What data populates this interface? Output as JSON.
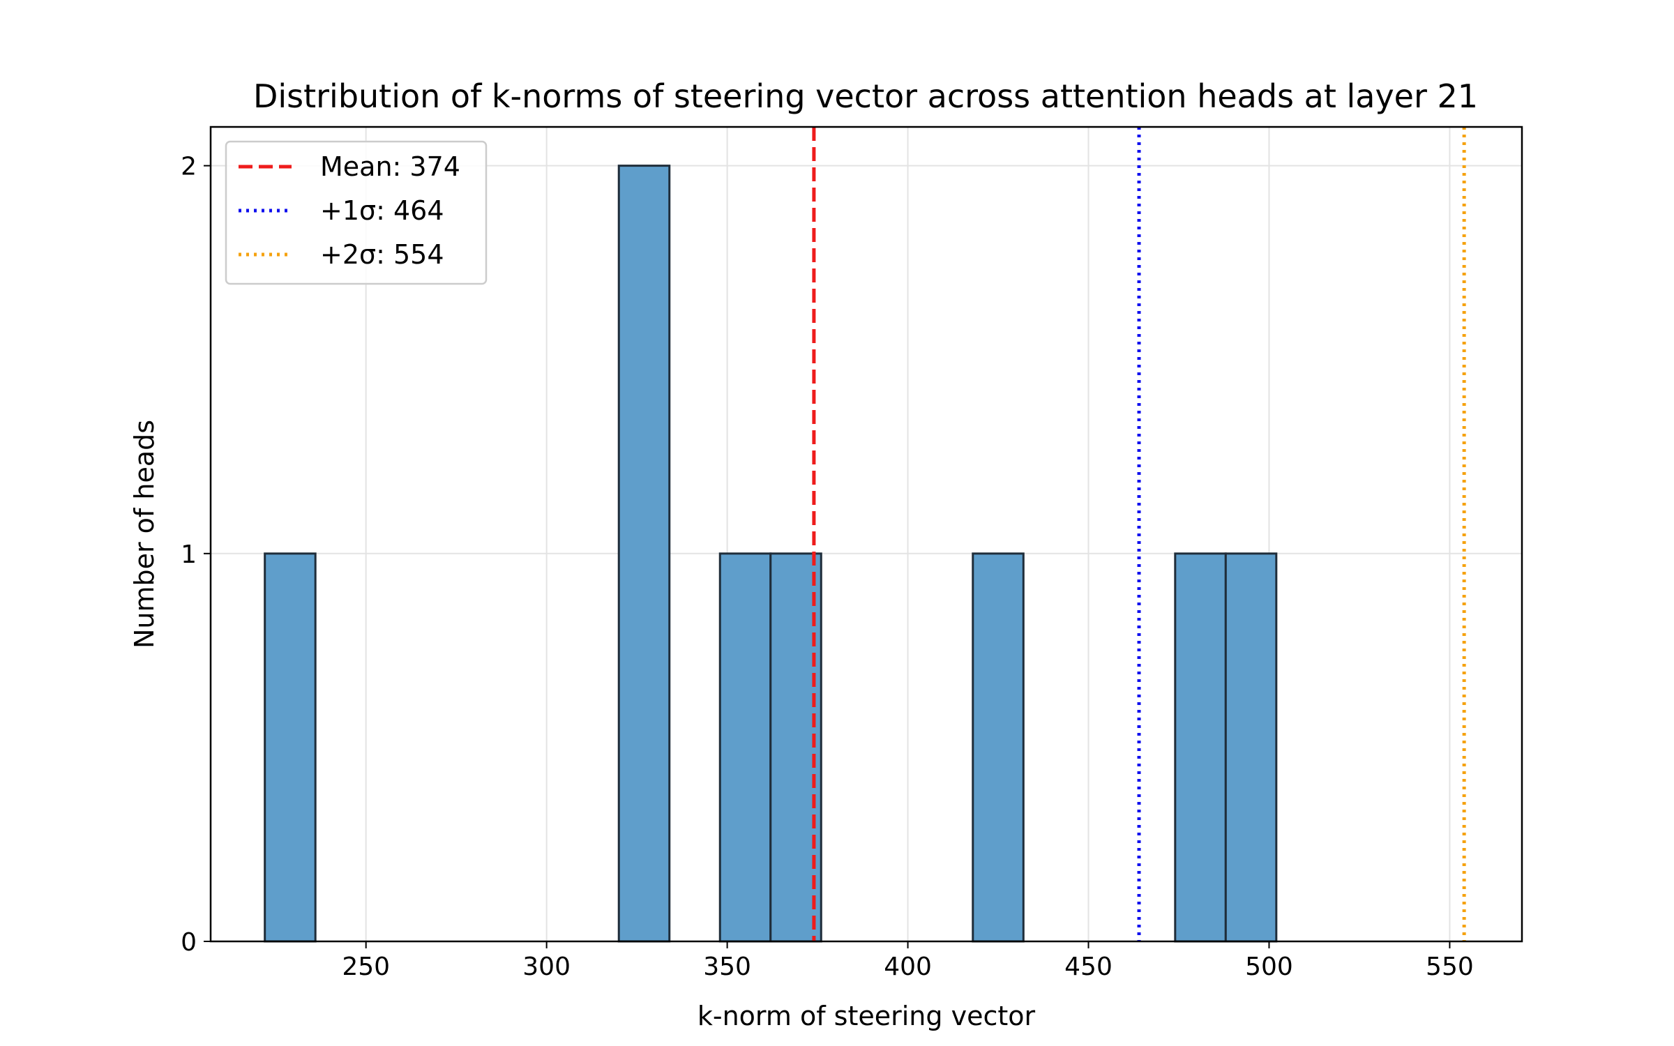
{
  "chart_data": {
    "type": "bar",
    "title": "Distribution of k-norms of steering vector across attention heads at layer 21",
    "xlabel": "k-norm of steering vector",
    "ylabel": "Number of heads",
    "xlim": [
      207,
      570
    ],
    "ylim": [
      0,
      2.1
    ],
    "xticks": [
      250,
      300,
      350,
      400,
      450,
      500,
      550
    ],
    "yticks": [
      0,
      1,
      2
    ],
    "grid": true,
    "legend_position": "top-left",
    "bar_color": "#5f9ecb",
    "bar_edge_color": "#1f2d3a",
    "bins": [
      {
        "x0": 222,
        "x1": 236,
        "count": 1
      },
      {
        "x0": 320,
        "x1": 334,
        "count": 2
      },
      {
        "x0": 348,
        "x1": 362,
        "count": 1
      },
      {
        "x0": 362,
        "x1": 376,
        "count": 1
      },
      {
        "x0": 418,
        "x1": 432,
        "count": 1
      },
      {
        "x0": 474,
        "x1": 488,
        "count": 1
      },
      {
        "x0": 488,
        "x1": 502,
        "count": 1
      }
    ],
    "reference_lines": [
      {
        "label": "Mean: 374",
        "x": 374,
        "color": "#ee1c1c",
        "style": "dashed"
      },
      {
        "label": "+1σ: 464",
        "x": 464,
        "color": "#1010ee",
        "style": "dotted"
      },
      {
        "label": "+2σ: 554",
        "x": 554,
        "color": "#f5a20f",
        "style": "dotted"
      }
    ]
  }
}
